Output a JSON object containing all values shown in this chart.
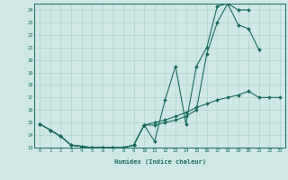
{
  "title": "",
  "xlabel": "Humidex (Indice chaleur)",
  "xlim_min": -0.5,
  "xlim_max": 23.5,
  "ylim_min": 13,
  "ylim_max": 24.5,
  "bg_color": "#cde8e5",
  "line_color": "#1a6b5e",
  "grid_color": "#aacfcb",
  "curve1_x": [
    0,
    1,
    2,
    3,
    4,
    5,
    6,
    7,
    8,
    9,
    10,
    11,
    12,
    13,
    14,
    15,
    16,
    17,
    18,
    19,
    20
  ],
  "curve1_y": [
    14.9,
    14.4,
    13.9,
    13.2,
    13.1,
    13.0,
    13.0,
    13.0,
    13.0,
    13.2,
    14.8,
    13.5,
    16.8,
    19.5,
    14.9,
    19.5,
    21.0,
    24.3,
    24.5,
    24.0,
    24.0
  ],
  "curve2_x": [
    0,
    1,
    2,
    3,
    4,
    5,
    6,
    7,
    8,
    9,
    10,
    11,
    12,
    13,
    14,
    15,
    16,
    17,
    18,
    19,
    20,
    21
  ],
  "curve2_y": [
    14.9,
    14.4,
    13.9,
    13.2,
    13.1,
    13.0,
    13.0,
    13.0,
    13.0,
    13.2,
    14.8,
    14.8,
    15.0,
    15.2,
    15.5,
    16.0,
    20.5,
    23.0,
    24.5,
    22.8,
    22.5,
    20.8
  ],
  "curve3_x": [
    0,
    1,
    2,
    3,
    4,
    5,
    6,
    7,
    8,
    9,
    10,
    11,
    12,
    13,
    14,
    15,
    16,
    17,
    18,
    19,
    20,
    21,
    22,
    23
  ],
  "curve3_y": [
    14.9,
    14.4,
    13.9,
    13.2,
    13.1,
    13.0,
    13.0,
    13.0,
    13.0,
    13.2,
    14.8,
    15.0,
    15.2,
    15.5,
    15.8,
    16.2,
    16.5,
    16.8,
    17.0,
    17.2,
    17.5,
    17.0,
    17.0,
    17.0
  ]
}
